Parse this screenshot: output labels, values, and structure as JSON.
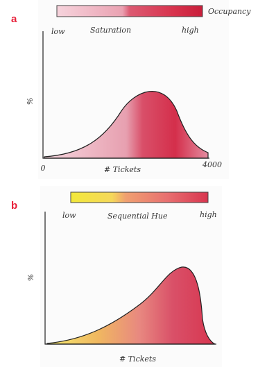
{
  "panels": [
    {
      "label": "a",
      "legend_title": "Occupancy",
      "legend_low": "low",
      "legend_name": "Saturation",
      "legend_high": "high",
      "y_axis_label": "%",
      "x_axis_label": "# Tickets",
      "x_min": "0",
      "x_max": "4000"
    },
    {
      "label": "b",
      "legend_low": "low",
      "legend_name": "Sequential Hue",
      "legend_high": "high",
      "y_axis_label": "%",
      "x_axis_label": "# Tickets"
    }
  ]
}
